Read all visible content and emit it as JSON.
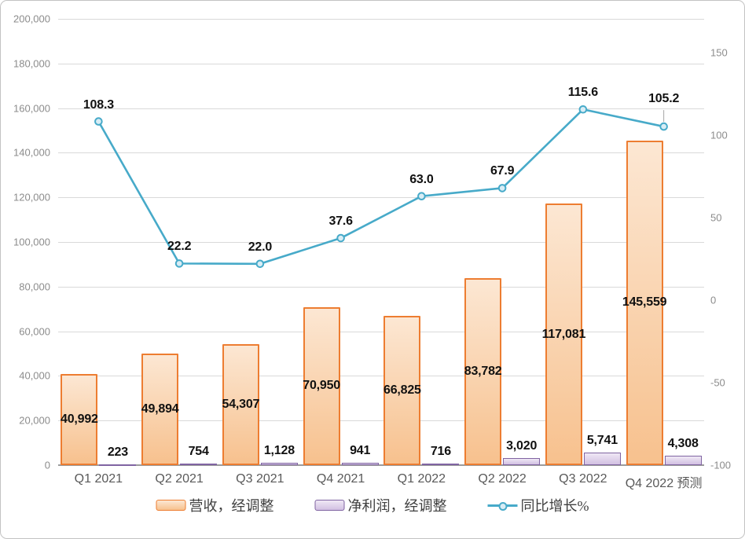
{
  "chart_data": {
    "type": "combo",
    "title": "",
    "categories": [
      "Q1 2021",
      "Q2 2021",
      "Q3 2021",
      "Q4 2021",
      "Q1 2022",
      "Q2 2022",
      "Q3 2022",
      "Q4 2022 预测"
    ],
    "series": [
      {
        "name": "营收，经调整",
        "type": "bar",
        "axis": "left",
        "values": [
          40992,
          49894,
          54307,
          70950,
          66825,
          83782,
          117081,
          145559
        ],
        "labels": [
          "40,992",
          "49,894",
          "54,307",
          "70,950",
          "66,825",
          "83,782",
          "117,081",
          "145,559"
        ],
        "label_position": "inside-center",
        "border_color": "#ED7D31",
        "fill_top": "#FCE7D3",
        "fill_bottom": "#F7C18E"
      },
      {
        "name": "净利润，经调整",
        "type": "bar",
        "axis": "left",
        "values": [
          223,
          754,
          1128,
          941,
          716,
          3020,
          5741,
          4308
        ],
        "labels": [
          "223",
          "754",
          "1,128",
          "941",
          "716",
          "3,020",
          "5,741",
          "4,308"
        ],
        "label_position": "outside-above",
        "border_color": "#8064A2",
        "fill_top": "#EFE8F5",
        "fill_bottom": "#D2C0E2"
      },
      {
        "name": "同比增长%",
        "type": "line",
        "axis": "right",
        "values": [
          108.3,
          22.2,
          22.0,
          37.6,
          63.0,
          67.9,
          115.6,
          105.2
        ],
        "labels": [
          "108.3",
          "22.2",
          "22.0",
          "37.6",
          "63.0",
          "67.9",
          "115.6",
          "105.2"
        ],
        "label_position": "above",
        "color": "#47AAC9",
        "marker_fill": "#D9EDF5",
        "last_point_has_leader_line": true
      }
    ],
    "left_axis": {
      "min": 0,
      "max": 200000,
      "step": 20000,
      "tick_labels": [
        "0",
        "20,000",
        "40,000",
        "60,000",
        "80,000",
        "100,000",
        "120,000",
        "140,000",
        "160,000",
        "180,000",
        "200,000"
      ]
    },
    "right_axis": {
      "min": -100,
      "max": 150,
      "step": 50,
      "tick_labels": [
        "-100",
        "-50",
        "0",
        "50",
        "100",
        "150"
      ]
    },
    "grid": true,
    "legend_position": "bottom"
  },
  "colors": {
    "gridline": "#D9D9D9",
    "axis_line": "#9C9C9C",
    "axis_text": "#8C8C8C",
    "category_text": "#595959",
    "data_label": "#111111",
    "chart_border": "#C3C3C3",
    "leader_line": "#A6A6A6"
  }
}
